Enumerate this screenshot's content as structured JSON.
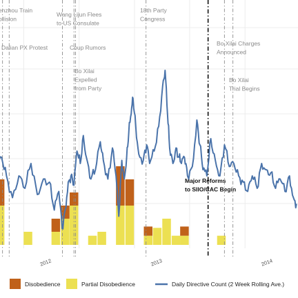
{
  "chart_data": {
    "type": "bar+line",
    "series": [
      {
        "name": "Disobedience",
        "color": "#c0611a"
      },
      {
        "name": "Partial Disobedience",
        "color": "#ece052"
      },
      {
        "name": "Daily Directive Count (2 Week Rolling Ave.)",
        "color": "#4a73aa"
      }
    ],
    "x_ticks": [
      "2012",
      "2013",
      "2014"
    ],
    "bars": [
      {
        "month": "2011-07",
        "partial": 3,
        "dis": 2
      },
      {
        "month": "2011-10",
        "partial": 1,
        "dis": 0
      },
      {
        "month": "2012-01",
        "partial": 1,
        "dis": 1
      },
      {
        "month": "2012-02",
        "partial": 2,
        "dis": 1
      },
      {
        "month": "2012-03",
        "partial": 3,
        "dis": 1
      },
      {
        "month": "2012-05",
        "partial": 0.7,
        "dis": 0
      },
      {
        "month": "2012-06",
        "partial": 1,
        "dis": 0
      },
      {
        "month": "2012-08",
        "partial": 3,
        "dis": 3
      },
      {
        "month": "2012-09",
        "partial": 3,
        "dis": 2
      },
      {
        "month": "2012-11",
        "partial": 0.7,
        "dis": 0.7
      },
      {
        "month": "2012-12",
        "partial": 1.3,
        "dis": 0
      },
      {
        "month": "2013-01",
        "partial": 2,
        "dis": 0
      },
      {
        "month": "2013-02",
        "partial": 0.7,
        "dis": 0
      },
      {
        "month": "2013-03",
        "partial": 0.7,
        "dis": 0.7
      },
      {
        "month": "2013-07",
        "partial": 0.7,
        "dis": 0
      }
    ],
    "line": [
      {
        "date": "2011-07-01",
        "v": 3.2
      },
      {
        "date": "2011-07-20",
        "v": 3.6
      },
      {
        "date": "2011-08-05",
        "v": 3.0
      },
      {
        "date": "2011-08-25",
        "v": 2.3
      },
      {
        "date": "2011-09-15",
        "v": 3.0
      },
      {
        "date": "2011-10-05",
        "v": 2.6
      },
      {
        "date": "2011-10-25",
        "v": 3.4
      },
      {
        "date": "2011-11-15",
        "v": 2.4
      },
      {
        "date": "2011-12-05",
        "v": 2.9
      },
      {
        "date": "2011-12-25",
        "v": 2.8
      },
      {
        "date": "2012-01-10",
        "v": 1.9
      },
      {
        "date": "2012-01-25",
        "v": 2.5
      },
      {
        "date": "2012-02-05",
        "v": 1.3
      },
      {
        "date": "2012-02-15",
        "v": 1.9
      },
      {
        "date": "2012-02-25",
        "v": 2.8
      },
      {
        "date": "2012-03-05",
        "v": 3.0
      },
      {
        "date": "2012-03-15",
        "v": 2.7
      },
      {
        "date": "2012-03-25",
        "v": 3.8
      },
      {
        "date": "2012-04-05",
        "v": 3.4
      },
      {
        "date": "2012-04-15",
        "v": 4.3
      },
      {
        "date": "2012-04-25",
        "v": 3.6
      },
      {
        "date": "2012-05-10",
        "v": 2.9
      },
      {
        "date": "2012-05-25",
        "v": 3.2
      },
      {
        "date": "2012-06-10",
        "v": 4.1
      },
      {
        "date": "2012-06-20",
        "v": 3.5
      },
      {
        "date": "2012-07-05",
        "v": 2.9
      },
      {
        "date": "2012-07-20",
        "v": 3.9
      },
      {
        "date": "2012-08-01",
        "v": 3.0
      },
      {
        "date": "2012-08-10",
        "v": 1.7
      },
      {
        "date": "2012-08-20",
        "v": 3.5
      },
      {
        "date": "2012-08-28",
        "v": 2.9
      },
      {
        "date": "2012-09-05",
        "v": 3.6
      },
      {
        "date": "2012-09-12",
        "v": 4.4
      },
      {
        "date": "2012-09-20",
        "v": 5.0
      },
      {
        "date": "2012-09-26",
        "v": 5.5
      },
      {
        "date": "2012-10-05",
        "v": 4.6
      },
      {
        "date": "2012-10-15",
        "v": 3.7
      },
      {
        "date": "2012-10-30",
        "v": 3.5
      },
      {
        "date": "2012-11-10",
        "v": 4.0
      },
      {
        "date": "2012-11-20",
        "v": 3.4
      },
      {
        "date": "2012-12-05",
        "v": 3.8
      },
      {
        "date": "2012-12-20",
        "v": 4.6
      },
      {
        "date": "2013-01-02",
        "v": 5.9
      },
      {
        "date": "2013-01-10",
        "v": 6.4
      },
      {
        "date": "2013-01-18",
        "v": 5.0
      },
      {
        "date": "2013-01-25",
        "v": 3.9
      },
      {
        "date": "2013-02-05",
        "v": 3.4
      },
      {
        "date": "2013-02-15",
        "v": 3.9
      },
      {
        "date": "2013-02-25",
        "v": 3.6
      },
      {
        "date": "2013-03-05",
        "v": 3.4
      },
      {
        "date": "2013-03-15",
        "v": 3.6
      },
      {
        "date": "2013-03-25",
        "v": 3.0
      },
      {
        "date": "2013-04-10",
        "v": 3.3
      },
      {
        "date": "2013-04-25",
        "v": 4.8
      },
      {
        "date": "2013-05-05",
        "v": 4.0
      },
      {
        "date": "2013-05-15",
        "v": 3.2
      },
      {
        "date": "2013-05-28",
        "v": 3.0
      },
      {
        "date": "2013-06-10",
        "v": 4.2
      },
      {
        "date": "2013-06-25",
        "v": 3.5
      },
      {
        "date": "2013-07-10",
        "v": 3.0
      },
      {
        "date": "2013-07-25",
        "v": 4.0
      },
      {
        "date": "2013-08-10",
        "v": 3.3
      },
      {
        "date": "2013-08-25",
        "v": 3.4
      },
      {
        "date": "2013-09-10",
        "v": 3.0
      },
      {
        "date": "2013-09-25",
        "v": 2.8
      },
      {
        "date": "2013-10-10",
        "v": 2.5
      },
      {
        "date": "2013-10-25",
        "v": 3.0
      },
      {
        "date": "2013-11-10",
        "v": 2.6
      },
      {
        "date": "2013-11-25",
        "v": 3.4
      },
      {
        "date": "2013-12-10",
        "v": 3.2
      },
      {
        "date": "2013-12-25",
        "v": 3.1
      },
      {
        "date": "2014-01-10",
        "v": 2.6
      },
      {
        "date": "2014-01-25",
        "v": 2.9
      },
      {
        "date": "2014-02-10",
        "v": 2.5
      },
      {
        "date": "2014-02-25",
        "v": 3.0
      },
      {
        "date": "2014-03-10",
        "v": 2.3
      },
      {
        "date": "2014-03-20",
        "v": 2.1
      }
    ],
    "events": [
      {
        "date": "2011-07-23",
        "label": "enzhou Train\nollision",
        "major": false
      },
      {
        "date": "2011-08-14",
        "label": "Dalian PX Protest",
        "major": false
      },
      {
        "date": "2012-02-06",
        "label": "Wang Lijun Flees\nto US Consulate",
        "major": false
      },
      {
        "date": "2012-03-15",
        "label": "Bo Xilai\nExpelled\nfrom Party",
        "major": false
      },
      {
        "date": "2012-03-20",
        "label": "Coup Rumors",
        "major": false
      },
      {
        "date": "2012-11-08",
        "label": "18th Party\nCongress",
        "major": false
      },
      {
        "date": "2013-06-01",
        "label": "Major Reforms\nto SIIO/CAC Begin",
        "major": true
      },
      {
        "date": "2013-07-25",
        "label": "Bo Xilai Charges\nAnnounced",
        "major": false
      },
      {
        "date": "2013-08-22",
        "label": "Bo Xilai\nTrial Begins",
        "major": false
      }
    ]
  }
}
